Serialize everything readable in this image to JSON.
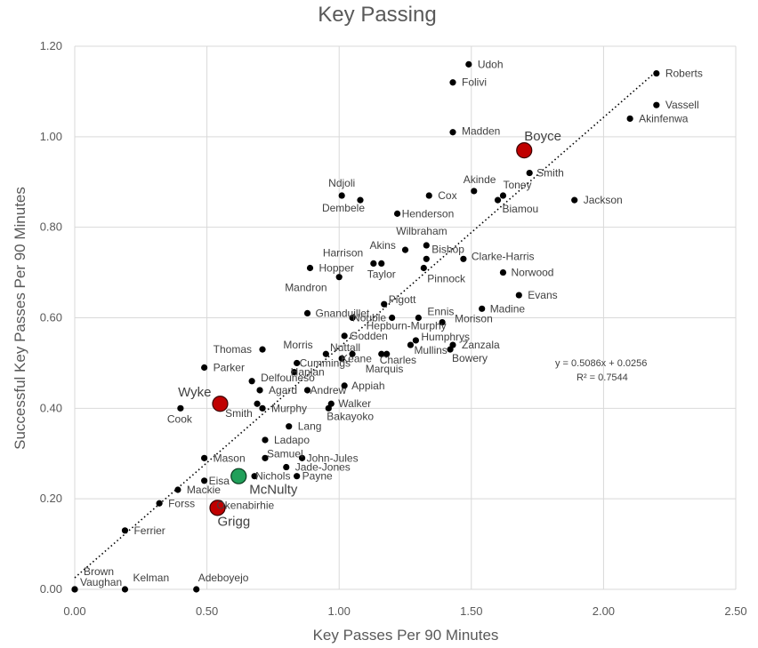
{
  "chart_data": {
    "type": "scatter",
    "title": "Key Passing",
    "xlabel": "Key Passes Per 90 Minutes",
    "ylabel": "Successful Key Passes Per 90 Minutes",
    "xlim": [
      0,
      2.5
    ],
    "ylim": [
      0,
      1.2
    ],
    "x_ticks": [
      "0.00",
      "0.50",
      "1.00",
      "1.50",
      "2.00",
      "2.50"
    ],
    "y_ticks": [
      "0.00",
      "0.20",
      "0.40",
      "0.60",
      "0.80",
      "1.00",
      "1.20"
    ],
    "grid": true,
    "trendline": {
      "style": "dotted",
      "slope": 0.5086,
      "intercept": 0.0256,
      "equation": "y = 0.5086x + 0.0256",
      "r2": "R² = 0.7544"
    },
    "colors": {
      "default": "#000000",
      "highlight_red": "#c00000",
      "highlight_green": "#21a05a"
    },
    "points": [
      {
        "name": "Udoh",
        "x": 1.49,
        "y": 1.16
      },
      {
        "name": "Folivi",
        "x": 1.43,
        "y": 1.12
      },
      {
        "name": "Roberts",
        "x": 2.2,
        "y": 1.14
      },
      {
        "name": "Vassell",
        "x": 2.2,
        "y": 1.07
      },
      {
        "name": "Akinfenwa",
        "x": 2.1,
        "y": 1.04
      },
      {
        "name": "Madden",
        "x": 1.43,
        "y": 1.01
      },
      {
        "name": "Boyce",
        "x": 1.7,
        "y": 0.97,
        "highlight": "red"
      },
      {
        "name": "Smith",
        "x": 1.72,
        "y": 0.92
      },
      {
        "name": "Akinde",
        "x": 1.51,
        "y": 0.88
      },
      {
        "name": "Toney",
        "x": 1.62,
        "y": 0.87
      },
      {
        "name": "Biamou",
        "x": 1.6,
        "y": 0.86
      },
      {
        "name": "Jackson",
        "x": 1.89,
        "y": 0.86
      },
      {
        "name": "Cox",
        "x": 1.34,
        "y": 0.87
      },
      {
        "name": "Ndjoli",
        "x": 1.01,
        "y": 0.87
      },
      {
        "name": "Dembele",
        "x": 1.08,
        "y": 0.86
      },
      {
        "name": "Henderson",
        "x": 1.22,
        "y": 0.83
      },
      {
        "name": "Wilbraham",
        "x": 1.33,
        "y": 0.76
      },
      {
        "name": "Akins",
        "x": 1.25,
        "y": 0.75
      },
      {
        "name": "Bishop",
        "x": 1.33,
        "y": 0.73
      },
      {
        "name": "Clarke-Harris",
        "x": 1.47,
        "y": 0.73
      },
      {
        "name": "Harrison",
        "x": 1.13,
        "y": 0.72
      },
      {
        "name": "Taylor",
        "x": 1.16,
        "y": 0.72
      },
      {
        "name": "Hopper",
        "x": 0.89,
        "y": 0.71
      },
      {
        "name": "Pinnock",
        "x": 1.32,
        "y": 0.71
      },
      {
        "name": "Norwood",
        "x": 1.62,
        "y": 0.7
      },
      {
        "name": "Mandron",
        "x": 1.0,
        "y": 0.69
      },
      {
        "name": "Evans",
        "x": 1.68,
        "y": 0.65
      },
      {
        "name": "Pigott",
        "x": 1.17,
        "y": 0.63
      },
      {
        "name": "Madine",
        "x": 1.54,
        "y": 0.62
      },
      {
        "name": "Gnanduillet",
        "x": 0.88,
        "y": 0.61
      },
      {
        "name": "Ennis",
        "x": 1.3,
        "y": 0.6
      },
      {
        "name": "Morison",
        "x": 1.39,
        "y": 0.59
      },
      {
        "name": "Nouble",
        "x": 1.05,
        "y": 0.6
      },
      {
        "name": "Hepburn-Murphy",
        "x": 1.2,
        "y": 0.6
      },
      {
        "name": "Godden",
        "x": 1.02,
        "y": 0.56
      },
      {
        "name": "Humphrys",
        "x": 1.29,
        "y": 0.55
      },
      {
        "name": "Zanzala",
        "x": 1.43,
        "y": 0.54
      },
      {
        "name": "Morris",
        "x": 0.95,
        "y": 0.52
      },
      {
        "name": "Nuttall",
        "x": 1.05,
        "y": 0.52
      },
      {
        "name": "Mullins",
        "x": 1.27,
        "y": 0.54
      },
      {
        "name": "Bowery",
        "x": 1.42,
        "y": 0.53
      },
      {
        "name": "Keane",
        "x": 1.01,
        "y": 0.51
      },
      {
        "name": "Charles",
        "x": 1.18,
        "y": 0.52
      },
      {
        "name": "Marquis",
        "x": 1.16,
        "y": 0.52
      },
      {
        "name": "Thomas",
        "x": 0.71,
        "y": 0.53
      },
      {
        "name": "Cummings",
        "x": 0.84,
        "y": 0.5
      },
      {
        "name": "Parker",
        "x": 0.49,
        "y": 0.49
      },
      {
        "name": "Hanlan",
        "x": 0.83,
        "y": 0.48
      },
      {
        "name": "Delfouneso",
        "x": 0.67,
        "y": 0.46
      },
      {
        "name": "Appiah",
        "x": 1.02,
        "y": 0.45
      },
      {
        "name": "Agard",
        "x": 0.7,
        "y": 0.44
      },
      {
        "name": "Andrew",
        "x": 0.88,
        "y": 0.44
      },
      {
        "name": "Wyke",
        "x": 0.55,
        "y": 0.41,
        "highlight": "red"
      },
      {
        "name": "Walker",
        "x": 0.97,
        "y": 0.41
      },
      {
        "name": "Smith",
        "x": 0.69,
        "y": 0.41
      },
      {
        "name": "Murphy",
        "x": 0.71,
        "y": 0.4
      },
      {
        "name": "Bakayoko",
        "x": 0.96,
        "y": 0.4
      },
      {
        "name": "Cook",
        "x": 0.4,
        "y": 0.4
      },
      {
        "name": "Lang",
        "x": 0.81,
        "y": 0.36
      },
      {
        "name": "Ladapo",
        "x": 0.72,
        "y": 0.33
      },
      {
        "name": "Samuel",
        "x": 0.72,
        "y": 0.29
      },
      {
        "name": "John-Jules",
        "x": 0.86,
        "y": 0.29
      },
      {
        "name": "Mason",
        "x": 0.49,
        "y": 0.29
      },
      {
        "name": "Jade-Jones",
        "x": 0.8,
        "y": 0.27
      },
      {
        "name": "Nichols",
        "x": 0.68,
        "y": 0.25
      },
      {
        "name": "Payne",
        "x": 0.84,
        "y": 0.25
      },
      {
        "name": "McNulty",
        "x": 0.62,
        "y": 0.25,
        "highlight": "green"
      },
      {
        "name": "Eisa",
        "x": 0.49,
        "y": 0.24
      },
      {
        "name": "Mackie",
        "x": 0.39,
        "y": 0.22
      },
      {
        "name": "Forss",
        "x": 0.32,
        "y": 0.19
      },
      {
        "name": "Okenabirhie",
        "x": 0.55,
        "y": 0.19
      },
      {
        "name": "Grigg",
        "x": 0.54,
        "y": 0.18,
        "highlight": "red"
      },
      {
        "name": "Ferrier",
        "x": 0.19,
        "y": 0.13
      },
      {
        "name": "Brown",
        "x": 0.0,
        "y": 0.0
      },
      {
        "name": "Vaughan",
        "x": 0.0,
        "y": 0.0
      },
      {
        "name": "Kelman",
        "x": 0.19,
        "y": 0.0
      },
      {
        "name": "Adeboyejo",
        "x": 0.46,
        "y": 0.0
      }
    ]
  }
}
